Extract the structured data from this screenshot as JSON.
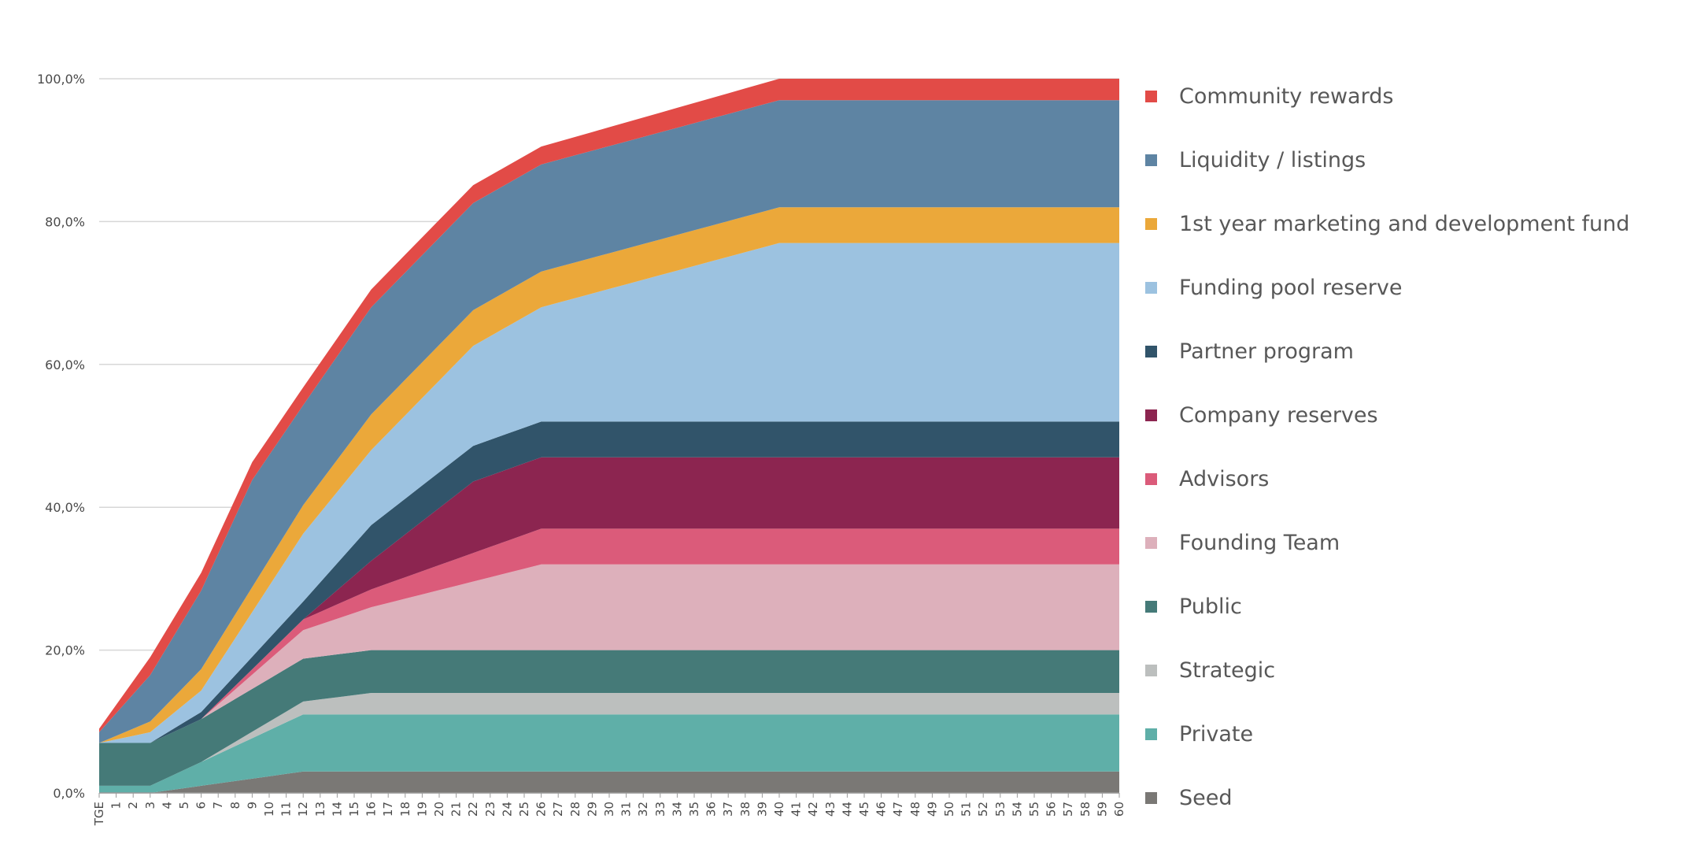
{
  "chart_data": {
    "type": "area",
    "stacked": true,
    "title": "",
    "xlabel": "",
    "ylabel": "",
    "ylim": [
      0,
      100
    ],
    "y_ticks": [
      "0,0%",
      "20,0%",
      "40,0%",
      "60,0%",
      "80,0%",
      "100,0%"
    ],
    "grid": true,
    "legend_position": "right",
    "categories": [
      "TGE",
      "1",
      "2",
      "3",
      "4",
      "5",
      "6",
      "7",
      "8",
      "9",
      "10",
      "11",
      "12",
      "13",
      "14",
      "15",
      "16",
      "17",
      "18",
      "19",
      "20",
      "21",
      "22",
      "23",
      "24",
      "25",
      "26",
      "27",
      "28",
      "29",
      "30",
      "31",
      "32",
      "33",
      "34",
      "35",
      "36",
      "37",
      "38",
      "39",
      "40",
      "41",
      "42",
      "43",
      "44",
      "45",
      "46",
      "47",
      "48",
      "49",
      "50",
      "51",
      "52",
      "53",
      "54",
      "55",
      "56",
      "57",
      "58",
      "59",
      "60"
    ],
    "x_months": [
      0,
      1,
      2,
      3,
      4,
      5,
      6,
      7,
      8,
      9,
      10,
      11,
      12,
      13,
      14,
      15,
      16,
      17,
      18,
      19,
      20,
      21,
      22,
      23,
      24,
      25,
      26,
      27,
      28,
      29,
      30,
      31,
      32,
      33,
      34,
      35,
      36,
      37,
      38,
      39,
      40,
      41,
      42,
      43,
      44,
      45,
      46,
      47,
      48,
      49,
      50,
      51,
      52,
      53,
      54,
      55,
      56,
      57,
      58,
      59,
      60
    ],
    "series": [
      {
        "name": "Seed",
        "color": "#7a7875",
        "x": [
          0,
          3,
          12,
          60
        ],
        "values": [
          0,
          0,
          3,
          3
        ]
      },
      {
        "name": "Private",
        "color": "#5fafa8",
        "x": [
          0,
          3,
          12,
          60
        ],
        "values": [
          1,
          1,
          8,
          8
        ]
      },
      {
        "name": "Strategic",
        "color": "#bcbfbe",
        "x": [
          0,
          3,
          6,
          16,
          60
        ],
        "values": [
          0,
          0,
          0,
          3,
          3
        ]
      },
      {
        "name": "Public",
        "color": "#457a78",
        "x": [
          0,
          3,
          6,
          12,
          60
        ],
        "values": [
          6,
          6,
          6,
          6,
          6
        ]
      },
      {
        "name": "Founding Team",
        "color": "#ddb0bb",
        "x": [
          0,
          6,
          12,
          16,
          26,
          60
        ],
        "values": [
          0,
          0,
          4,
          6,
          12,
          12
        ]
      },
      {
        "name": "Advisors",
        "color": "#db5b7a",
        "x": [
          0,
          6,
          12,
          16,
          26,
          60
        ],
        "values": [
          0,
          0,
          1.5,
          2.5,
          5,
          5
        ]
      },
      {
        "name": "Company reserves",
        "color": "#8c2550",
        "x": [
          0,
          12,
          16,
          22,
          26,
          60
        ],
        "values": [
          0,
          0,
          4,
          10,
          10,
          10
        ]
      },
      {
        "name": "Partner program",
        "color": "#31546a",
        "x": [
          0,
          3,
          6,
          12,
          16,
          22,
          26,
          60
        ],
        "values": [
          0,
          0,
          1,
          2.5,
          5,
          5,
          5,
          5
        ]
      },
      {
        "name": "Funding pool reserve",
        "color": "#9cc2e0",
        "x": [
          0,
          3,
          6,
          12,
          16,
          22,
          26,
          40,
          60
        ],
        "values": [
          0,
          1.5,
          3,
          9.5,
          10.5,
          14,
          16,
          25,
          25
        ]
      },
      {
        "name": "1st year marketing and development fund",
        "color": "#eba83a",
        "x": [
          0,
          3,
          6,
          12,
          16,
          22,
          26,
          40,
          60
        ],
        "values": [
          0,
          1.5,
          3,
          4,
          5,
          5,
          5,
          5,
          5
        ]
      },
      {
        "name": "Liquidity / listings",
        "color": "#5e84a3",
        "x": [
          0,
          3,
          6,
          9,
          12,
          16,
          22,
          26,
          40,
          60
        ],
        "values": [
          1.5,
          6.5,
          11,
          15,
          14,
          15,
          15,
          15,
          15,
          15
        ]
      },
      {
        "name": "Community rewards",
        "color": "#e24b47",
        "x": [
          0,
          3,
          6,
          9,
          12,
          16,
          22,
          26,
          40,
          60
        ],
        "values": [
          0.5,
          2.5,
          2.5,
          2.5,
          2.5,
          2.5,
          2.5,
          2.5,
          3,
          3
        ]
      }
    ]
  }
}
